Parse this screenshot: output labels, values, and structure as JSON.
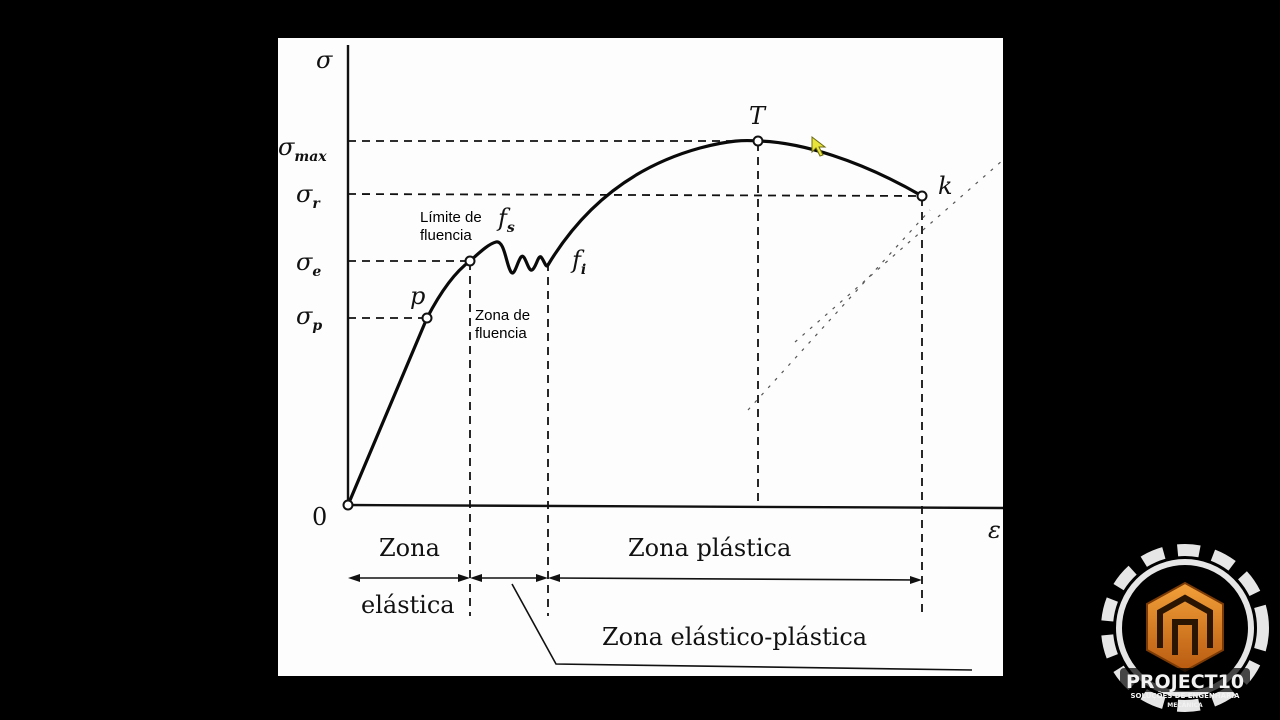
{
  "diagram": {
    "y_axis_label": "σ",
    "x_axis_label": "ε",
    "origin_label": "0",
    "stress_levels": [
      {
        "base": "σ",
        "sub": "max"
      },
      {
        "base": "σ",
        "sub": "r"
      },
      {
        "base": "σ",
        "sub": "e"
      },
      {
        "base": "σ",
        "sub": "p"
      }
    ],
    "point_labels": {
      "p": "p",
      "fs": {
        "base": "f",
        "sub": "s"
      },
      "fi": {
        "base": "f",
        "sub": "i"
      },
      "T": "T",
      "k": "k"
    },
    "annotations": {
      "yield_limit": [
        "Límite de",
        "fluencia"
      ],
      "yield_zone": [
        "Zona de",
        "fluencia"
      ]
    },
    "zones": {
      "elastic_top": "Zona",
      "elastic_bottom": "elástica",
      "plastic": "Zona plástica",
      "elastoplastic": "Zona elástico-plástica"
    }
  },
  "logo": {
    "name": "PROJECT10",
    "tagline_1": "SOLUÇÕES DE ENGENHARIA",
    "tagline_2": "MECÂNICA",
    "colors": {
      "orange": "#e07a1f",
      "gear": "#e6e6e6"
    }
  }
}
